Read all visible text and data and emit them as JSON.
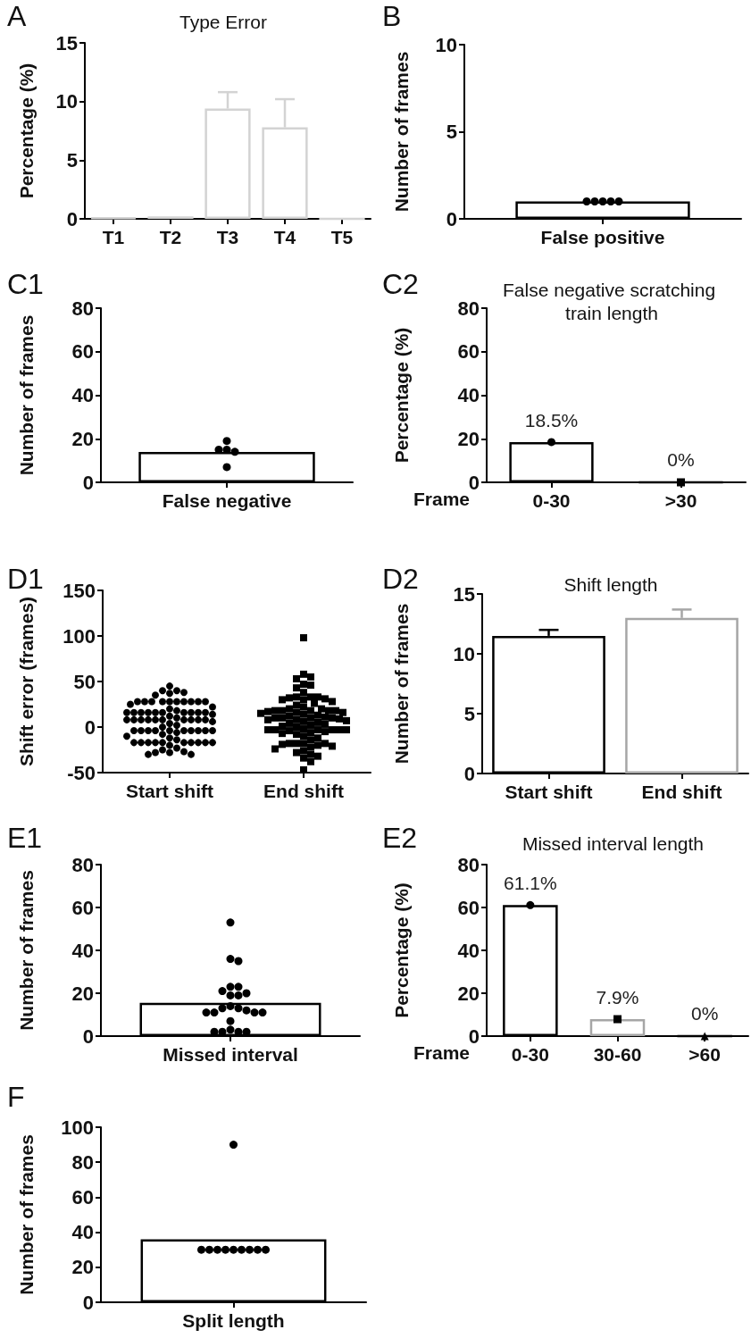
{
  "chart_data": [
    {
      "type": "bar",
      "title": "Type Error",
      "ylabel": "Percentage (%)",
      "annotations": [
        "A"
      ],
      "categories": [
        "T1",
        "T2",
        "T3",
        "T4",
        "T5"
      ],
      "series": [
        {
          "color": "#d3d3d3",
          "values": [
            0.1,
            0.2,
            9.4,
            7.8,
            0
          ],
          "errors": [
            null,
            null,
            [
              9.4,
              10.8
            ],
            [
              7.8,
              10.2
            ],
            null
          ]
        }
      ],
      "ylim": [
        0,
        15
      ],
      "yticks": [
        0,
        5,
        10,
        15
      ]
    },
    {
      "type": "bar",
      "ylabel": "Number of frames",
      "annotations": [
        "B"
      ],
      "categories": [
        "False positive"
      ],
      "series": [
        {
          "color": "#000000",
          "values": [
            1
          ]
        },
        {
          "type": "scatter",
          "color": "#000000",
          "marker": "circle",
          "x": [
            "False positive",
            "False positive",
            "False positive",
            "False positive",
            "False positive"
          ],
          "values": [
            1,
            1,
            1,
            1,
            1
          ]
        }
      ],
      "ylim": [
        0,
        10
      ],
      "yticks": [
        0,
        5,
        10
      ]
    },
    {
      "type": "bar",
      "ylabel": "Number of frames",
      "annotations": [
        "C1"
      ],
      "categories": [
        "False negative"
      ],
      "series": [
        {
          "color": "#000000",
          "values": [
            14
          ]
        },
        {
          "type": "scatter",
          "color": "#000000",
          "marker": "circle",
          "x": [
            "False negative",
            "False negative",
            "False negative",
            "False negative",
            "False negative"
          ],
          "values": [
            19,
            15,
            14,
            15,
            7
          ]
        }
      ],
      "ylim": [
        0,
        80
      ],
      "yticks": [
        0,
        20,
        40,
        60,
        80
      ]
    },
    {
      "type": "bar",
      "title": "False negative scratching train length",
      "ylabel": "Percentage (%)",
      "xlabel": "Frame",
      "annotations": [
        "C2"
      ],
      "categories": [
        "0-30",
        ">30"
      ],
      "series": [
        {
          "colors": [
            "#000000",
            "#000000"
          ],
          "values": [
            18.5,
            0
          ],
          "value_labels": [
            "18.5%",
            "0%"
          ]
        },
        {
          "type": "scatter",
          "color": "#000000",
          "marker": "circle",
          "x": [
            "0-30"
          ],
          "values": [
            18.5
          ]
        },
        {
          "type": "scatter",
          "color": "#000000",
          "marker": "square",
          "x": [
            ">30"
          ],
          "values": [
            0
          ]
        }
      ],
      "ylim": [
        0,
        80
      ],
      "yticks": [
        0,
        20,
        40,
        60,
        80
      ]
    },
    {
      "type": "scatter",
      "ylabel": "Shift error (frames)",
      "annotations": [
        "D1"
      ],
      "categories": [
        "Start shift",
        "End shift"
      ],
      "series": [
        {
          "color": "#000000",
          "marker": "circle",
          "x": [
            "Start shift",
            "Start shift",
            "Start shift",
            "Start shift",
            "Start shift",
            "Start shift",
            "Start shift",
            "Start shift",
            "Start shift",
            "Start shift",
            "Start shift",
            "Start shift",
            "Start shift",
            "Start shift",
            "Start shift",
            "Start shift",
            "Start shift",
            "Start shift",
            "Start shift",
            "Start shift",
            "Start shift",
            "Start shift",
            "Start shift",
            "Start shift",
            "Start shift",
            "Start shift",
            "Start shift",
            "Start shift",
            "Start shift",
            "Start shift",
            "Start shift",
            "Start shift",
            "Start shift",
            "Start shift",
            "Start shift",
            "Start shift",
            "Start shift",
            "Start shift",
            "Start shift",
            "Start shift",
            "Start shift",
            "Start shift",
            "Start shift",
            "Start shift",
            "Start shift",
            "Start shift",
            "Start shift",
            "Start shift",
            "Start shift",
            "Start shift",
            "Start shift",
            "Start shift",
            "Start shift",
            "Start shift",
            "Start shift",
            "Start shift",
            "Start shift",
            "Start shift",
            "Start shift",
            "Start shift",
            "Start shift",
            "Start shift",
            "Start shift",
            "Start shift",
            "Start shift",
            "Start shift",
            "Start shift",
            "Start shift",
            "Start shift",
            "Start shift",
            "Start shift",
            "Start shift",
            "Start shift",
            "Start shift",
            "Start shift",
            "Start shift",
            "Start shift",
            "Start shift",
            "Start shift",
            "Start shift"
          ],
          "values": [
            45,
            40,
            40,
            38,
            37,
            35,
            28,
            28,
            28,
            28,
            28,
            28,
            28,
            28,
            28,
            28,
            25,
            22,
            20,
            18,
            16,
            16,
            16,
            16,
            16,
            16,
            16,
            16,
            16,
            16,
            14,
            12,
            10,
            8,
            8,
            8,
            8,
            8,
            8,
            8,
            8,
            8,
            8,
            6,
            4,
            2,
            0,
            -4,
            -4,
            -4,
            -4,
            -4,
            -4,
            -4,
            -4,
            -4,
            -4,
            -6,
            -8,
            -10,
            -12,
            -14,
            -17,
            -17,
            -17,
            -17,
            -17,
            -17,
            -17,
            -17,
            -17,
            -17,
            -20,
            -23,
            -25,
            -27,
            -28,
            -28,
            -30,
            -30
          ]
        },
        {
          "color": "#000000",
          "marker": "square",
          "x": [
            "End shift",
            "End shift",
            "End shift",
            "End shift",
            "End shift",
            "End shift",
            "End shift",
            "End shift",
            "End shift",
            "End shift",
            "End shift",
            "End shift",
            "End shift",
            "End shift",
            "End shift",
            "End shift",
            "End shift",
            "End shift",
            "End shift",
            "End shift",
            "End shift",
            "End shift",
            "End shift",
            "End shift",
            "End shift",
            "End shift",
            "End shift",
            "End shift",
            "End shift",
            "End shift",
            "End shift",
            "End shift",
            "End shift",
            "End shift",
            "End shift",
            "End shift",
            "End shift",
            "End shift",
            "End shift",
            "End shift",
            "End shift",
            "End shift",
            "End shift",
            "End shift",
            "End shift",
            "End shift",
            "End shift",
            "End shift",
            "End shift",
            "End shift",
            "End shift",
            "End shift",
            "End shift",
            "End shift",
            "End shift",
            "End shift",
            "End shift",
            "End shift",
            "End shift",
            "End shift",
            "End shift",
            "End shift",
            "End shift",
            "End shift",
            "End shift",
            "End shift",
            "End shift",
            "End shift",
            "End shift",
            "End shift",
            "End shift",
            "End shift",
            "End shift",
            "End shift",
            "End shift",
            "End shift",
            "End shift",
            "End shift",
            "End shift",
            "End shift"
          ],
          "values": [
            98,
            58,
            55,
            53,
            47,
            46,
            43,
            38,
            33,
            33,
            33,
            32,
            31,
            30,
            30,
            28,
            26,
            24,
            22,
            20,
            20,
            18,
            18,
            18,
            18,
            18,
            17,
            16,
            16,
            15,
            14,
            13,
            12,
            11,
            10,
            10,
            10,
            10,
            9,
            8,
            8,
            7,
            6,
            5,
            4,
            3,
            2,
            1,
            0,
            -2,
            -3,
            -3,
            -3,
            -3,
            -4,
            -5,
            -6,
            -7,
            -8,
            -10,
            -12,
            -14,
            -18,
            -18,
            -18,
            -18,
            -19,
            -20,
            -21,
            -22,
            -24,
            -26,
            -28,
            -30,
            -32,
            -34,
            -38,
            -47,
            -3,
            -3
          ]
        }
      ],
      "ylim": [
        -50,
        150
      ],
      "yticks": [
        -50,
        0,
        50,
        100,
        150
      ]
    },
    {
      "type": "bar",
      "title": "Shift length",
      "ylabel": "Number of frames",
      "annotations": [
        "D2"
      ],
      "categories": [
        "Start shift",
        "End shift"
      ],
      "series": [
        {
          "colors": [
            "#000000",
            "#a6a6a6"
          ],
          "values": [
            11.5,
            13
          ],
          "errors": [
            [
              11.5,
              12
            ],
            [
              13,
              13.7
            ]
          ]
        }
      ],
      "ylim": [
        0,
        15
      ],
      "yticks": [
        0,
        5,
        10,
        15
      ]
    },
    {
      "type": "bar",
      "ylabel": "Number of frames",
      "annotations": [
        "E1"
      ],
      "categories": [
        "Missed interval"
      ],
      "series": [
        {
          "color": "#000000",
          "values": [
            15.5
          ]
        },
        {
          "type": "scatter",
          "color": "#000000",
          "marker": "circle",
          "x": [
            "Missed interval",
            "Missed interval",
            "Missed interval",
            "Missed interval",
            "Missed interval",
            "Missed interval",
            "Missed interval",
            "Missed interval",
            "Missed interval",
            "Missed interval",
            "Missed interval",
            "Missed interval",
            "Missed interval",
            "Missed interval",
            "Missed interval",
            "Missed interval",
            "Missed interval",
            "Missed interval",
            "Missed interval",
            "Missed interval",
            "Missed interval",
            "Missed interval",
            "Missed interval"
          ],
          "values": [
            53,
            36,
            35,
            23,
            23,
            21,
            20,
            19,
            19,
            14,
            13,
            13,
            12,
            11,
            11,
            11,
            11,
            7,
            3,
            2,
            2,
            2,
            2
          ]
        }
      ],
      "ylim": [
        0,
        80
      ],
      "yticks": [
        0,
        20,
        40,
        60,
        80
      ]
    },
    {
      "type": "bar",
      "title": "Missed interval length",
      "ylabel": "Percentage (%)",
      "xlabel": "Frame",
      "annotations": [
        "E2"
      ],
      "categories": [
        "0-30",
        "30-60",
        ">60"
      ],
      "series": [
        {
          "colors": [
            "#000000",
            "#a6a6a6",
            "#000000"
          ],
          "values": [
            61.1,
            7.9,
            0
          ],
          "value_labels": [
            "61.1%",
            "7.9%",
            "0%"
          ]
        },
        {
          "type": "scatter",
          "color": "#000000",
          "marker": "circle",
          "x": [
            "0-30"
          ],
          "values": [
            61.1
          ]
        },
        {
          "type": "scatter",
          "color": "#000000",
          "marker": "square",
          "x": [
            "30-60"
          ],
          "values": [
            7.9
          ]
        },
        {
          "type": "scatter",
          "color": "#000000",
          "marker": "triangle",
          "x": [
            ">60"
          ],
          "values": [
            0
          ]
        }
      ],
      "ylim": [
        0,
        80
      ],
      "yticks": [
        0,
        20,
        40,
        60,
        80
      ]
    },
    {
      "type": "bar",
      "ylabel": "Number of frames",
      "annotations": [
        "F"
      ],
      "categories": [
        "Split length"
      ],
      "series": [
        {
          "color": "#000000",
          "values": [
            36
          ]
        },
        {
          "type": "scatter",
          "color": "#000000",
          "marker": "circle",
          "x": [
            "Split length",
            "Split length",
            "Split length",
            "Split length",
            "Split length",
            "Split length",
            "Split length",
            "Split length",
            "Split length",
            "Split length"
          ],
          "values": [
            90,
            30,
            30,
            30,
            30,
            30,
            30,
            30,
            30,
            30
          ]
        }
      ],
      "ylim": [
        0,
        100
      ],
      "yticks": [
        0,
        20,
        40,
        60,
        80,
        100
      ]
    }
  ]
}
